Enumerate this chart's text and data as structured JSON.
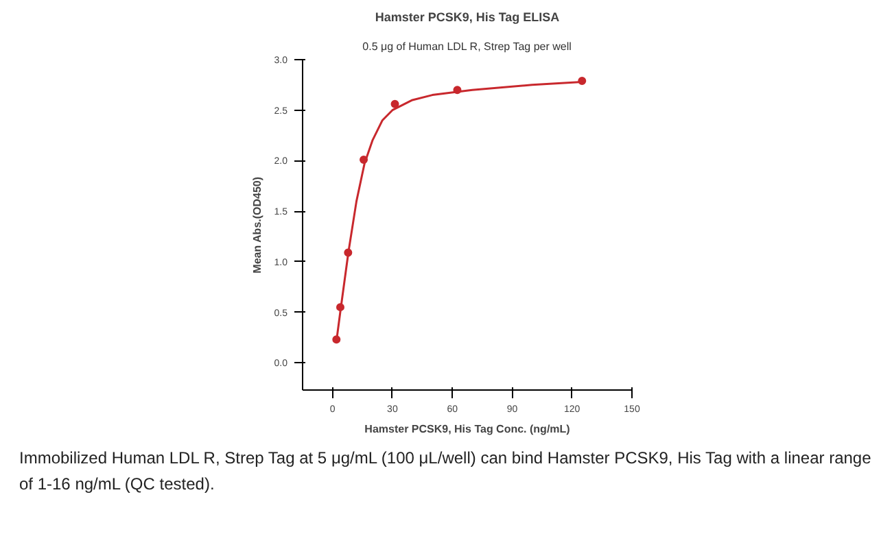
{
  "chart_data": {
    "type": "scatter",
    "title": "Hamster PCSK9, His Tag ELISA",
    "subtitle": "0.5 μg of Human LDL R, Strep Tag per well",
    "xlabel": "Hamster PCSK9, His Tag Conc. (ng/mL)",
    "ylabel": "Mean Abs.(OD450)",
    "x": [
      1.95,
      3.9,
      7.8,
      15.6,
      31.25,
      62.5,
      125
    ],
    "series": [
      {
        "color": "#c8282d",
        "values": [
          0.23,
          0.55,
          1.09,
          2.01,
          2.56,
          2.7,
          2.79
        ]
      },
      {
        "type": "line",
        "color": "#c8282d",
        "marker": "none",
        "x": [
          2,
          4,
          8,
          12,
          16,
          20,
          25,
          30,
          40,
          50,
          70,
          100,
          125
        ],
        "values": [
          0.22,
          0.52,
          1.1,
          1.6,
          1.97,
          2.2,
          2.4,
          2.5,
          2.6,
          2.65,
          2.7,
          2.75,
          2.78
        ]
      }
    ],
    "xlim": [
      -15,
      150
    ],
    "xticks": [
      0,
      30,
      60,
      90,
      120,
      150
    ],
    "ylim": [
      -0.27,
      3.0
    ],
    "yticks": [
      {
        "value": 0,
        "label": "0.0"
      },
      0.5,
      {
        "value": 1,
        "label": "1.0"
      },
      1.5,
      {
        "value": 2,
        "label": "2.0"
      },
      2.5,
      {
        "value": 3,
        "label": "3.0"
      }
    ],
    "grid": false,
    "marker": "circle",
    "annotations": [
      "Immobilized Human LDL R, Strep Tag at 5 μg/mL (100 μL/well) can bind Hamster PCSK9, His Tag with a linear range of 1-16 ng/mL (QC tested)."
    ]
  }
}
